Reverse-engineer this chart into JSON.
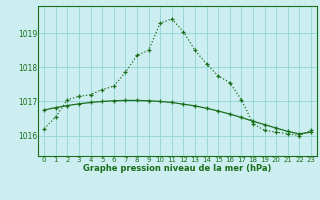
{
  "title": "Graphe pression niveau de la mer (hPa)",
  "bg_color": "#cceef0",
  "grid_color": "#99d9d9",
  "line_color": "#1a6e1a",
  "ylim": [
    1015.4,
    1019.8
  ],
  "yticks": [
    1016,
    1017,
    1018,
    1019
  ],
  "x_labels": [
    "0",
    "1",
    "2",
    "3",
    "4",
    "5",
    "6",
    "7",
    "8",
    "9",
    "10",
    "11",
    "12",
    "13",
    "14",
    "15",
    "16",
    "17",
    "18",
    "19",
    "20",
    "21",
    "22",
    "23"
  ],
  "curve1": [
    1016.2,
    1016.55,
    1017.05,
    1017.15,
    1017.2,
    1017.35,
    1017.45,
    1017.85,
    1018.35,
    1018.5,
    1019.3,
    1019.42,
    1019.05,
    1018.5,
    1018.1,
    1017.75,
    1017.55,
    1017.05,
    1016.35,
    1016.15,
    1016.1,
    1016.05,
    1016.0,
    1016.15
  ],
  "curve2": [
    1016.75,
    1016.82,
    1016.88,
    1016.93,
    1016.97,
    1017.0,
    1017.02,
    1017.03,
    1017.03,
    1017.02,
    1017.0,
    1016.97,
    1016.92,
    1016.87,
    1016.8,
    1016.72,
    1016.63,
    1016.53,
    1016.42,
    1016.32,
    1016.22,
    1016.12,
    1016.05,
    1016.1
  ]
}
